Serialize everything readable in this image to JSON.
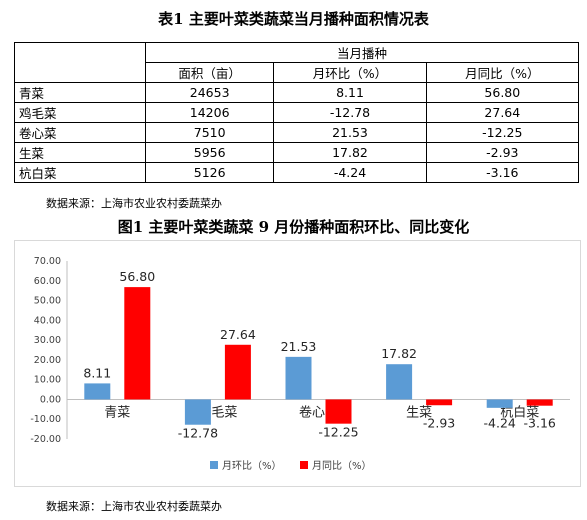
{
  "table": {
    "title": "表1 主要叶菜类蔬菜当月播种面积情况表",
    "group_header": "当月播种",
    "columns": [
      "面积（亩）",
      "月环比（%）",
      "月同比（%）"
    ],
    "rows": [
      {
        "name": "青菜",
        "area": "24653",
        "mom": "8.11",
        "yoy": "56.80"
      },
      {
        "name": "鸡毛菜",
        "area": "14206",
        "mom": "-12.78",
        "yoy": "27.64"
      },
      {
        "name": "卷心菜",
        "area": "7510",
        "mom": "21.53",
        "yoy": "-12.25"
      },
      {
        "name": "生菜",
        "area": "5956",
        "mom": "17.82",
        "yoy": "-2.93"
      },
      {
        "name": "杭白菜",
        "area": "5126",
        "mom": "-4.24",
        "yoy": "-3.16"
      }
    ],
    "source": "数据来源：上海市农业农村委蔬菜办"
  },
  "chart_data": {
    "type": "bar",
    "title": "图1 主要叶菜类蔬菜 9 月份播种面积环比、同比变化",
    "categories": [
      "青菜",
      "鸡毛菜",
      "卷心菜",
      "生菜",
      "杭白菜"
    ],
    "series": [
      {
        "name": "月环比（%）",
        "color": "#5b9bd5",
        "values": [
          8.11,
          -12.78,
          21.53,
          17.82,
          -4.24
        ]
      },
      {
        "name": "月同比（%）",
        "color": "#ff0000",
        "values": [
          56.8,
          27.64,
          -12.25,
          -2.93,
          -3.16
        ]
      }
    ],
    "ylim": [
      -20,
      70
    ],
    "yticks": [
      "-20.00",
      "-10.00",
      "0.00",
      "10.00",
      "20.00",
      "30.00",
      "40.00",
      "50.00",
      "60.00",
      "70.00"
    ],
    "legend": "bottom",
    "grid": false,
    "xlabel": "",
    "ylabel": "",
    "source": "数据来源：上海市农业农村委蔬菜办"
  }
}
